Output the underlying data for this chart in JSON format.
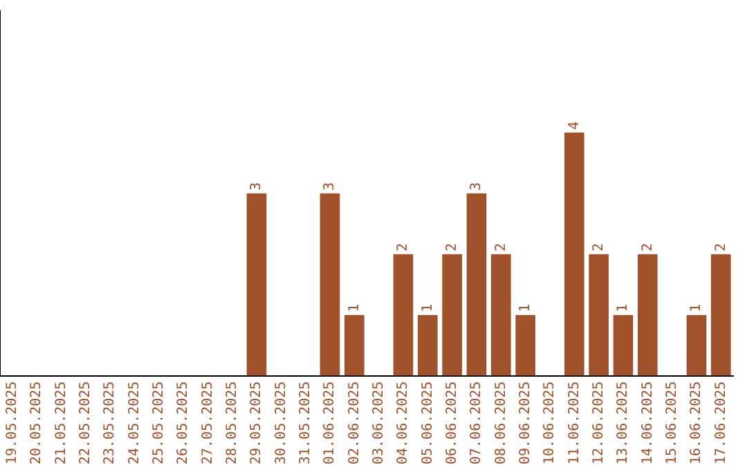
{
  "chart_data": {
    "type": "bar",
    "categories": [
      "19.05.2025",
      "20.05.2025",
      "21.05.2025",
      "22.05.2025",
      "23.05.2025",
      "24.05.2025",
      "25.05.2025",
      "26.05.2025",
      "27.05.2025",
      "28.05.2025",
      "29.05.2025",
      "30.05.2025",
      "31.05.2025",
      "01.06.2025",
      "02.06.2025",
      "03.06.2025",
      "04.06.2025",
      "05.06.2025",
      "06.06.2025",
      "07.06.2025",
      "08.06.2025",
      "09.06.2025",
      "10.06.2025",
      "11.06.2025",
      "12.06.2025",
      "13.06.2025",
      "14.06.2025",
      "15.06.2025",
      "16.06.2025",
      "17.06.2025"
    ],
    "values": [
      0,
      0,
      0,
      0,
      0,
      0,
      0,
      0,
      0,
      0,
      3,
      0,
      0,
      3,
      1,
      0,
      2,
      1,
      2,
      3,
      2,
      1,
      0,
      4,
      2,
      1,
      2,
      0,
      1,
      2
    ],
    "value_labels": [
      null,
      null,
      null,
      null,
      null,
      null,
      null,
      null,
      null,
      null,
      "3",
      null,
      null,
      "3",
      "1",
      null,
      "2",
      "1",
      "2",
      "3",
      "2",
      "1",
      null,
      "4",
      "2",
      "1",
      "2",
      null,
      "1",
      "2"
    ],
    "color": "#a0522d",
    "grid": false,
    "legend": false,
    "tick_labels": "x"
  }
}
